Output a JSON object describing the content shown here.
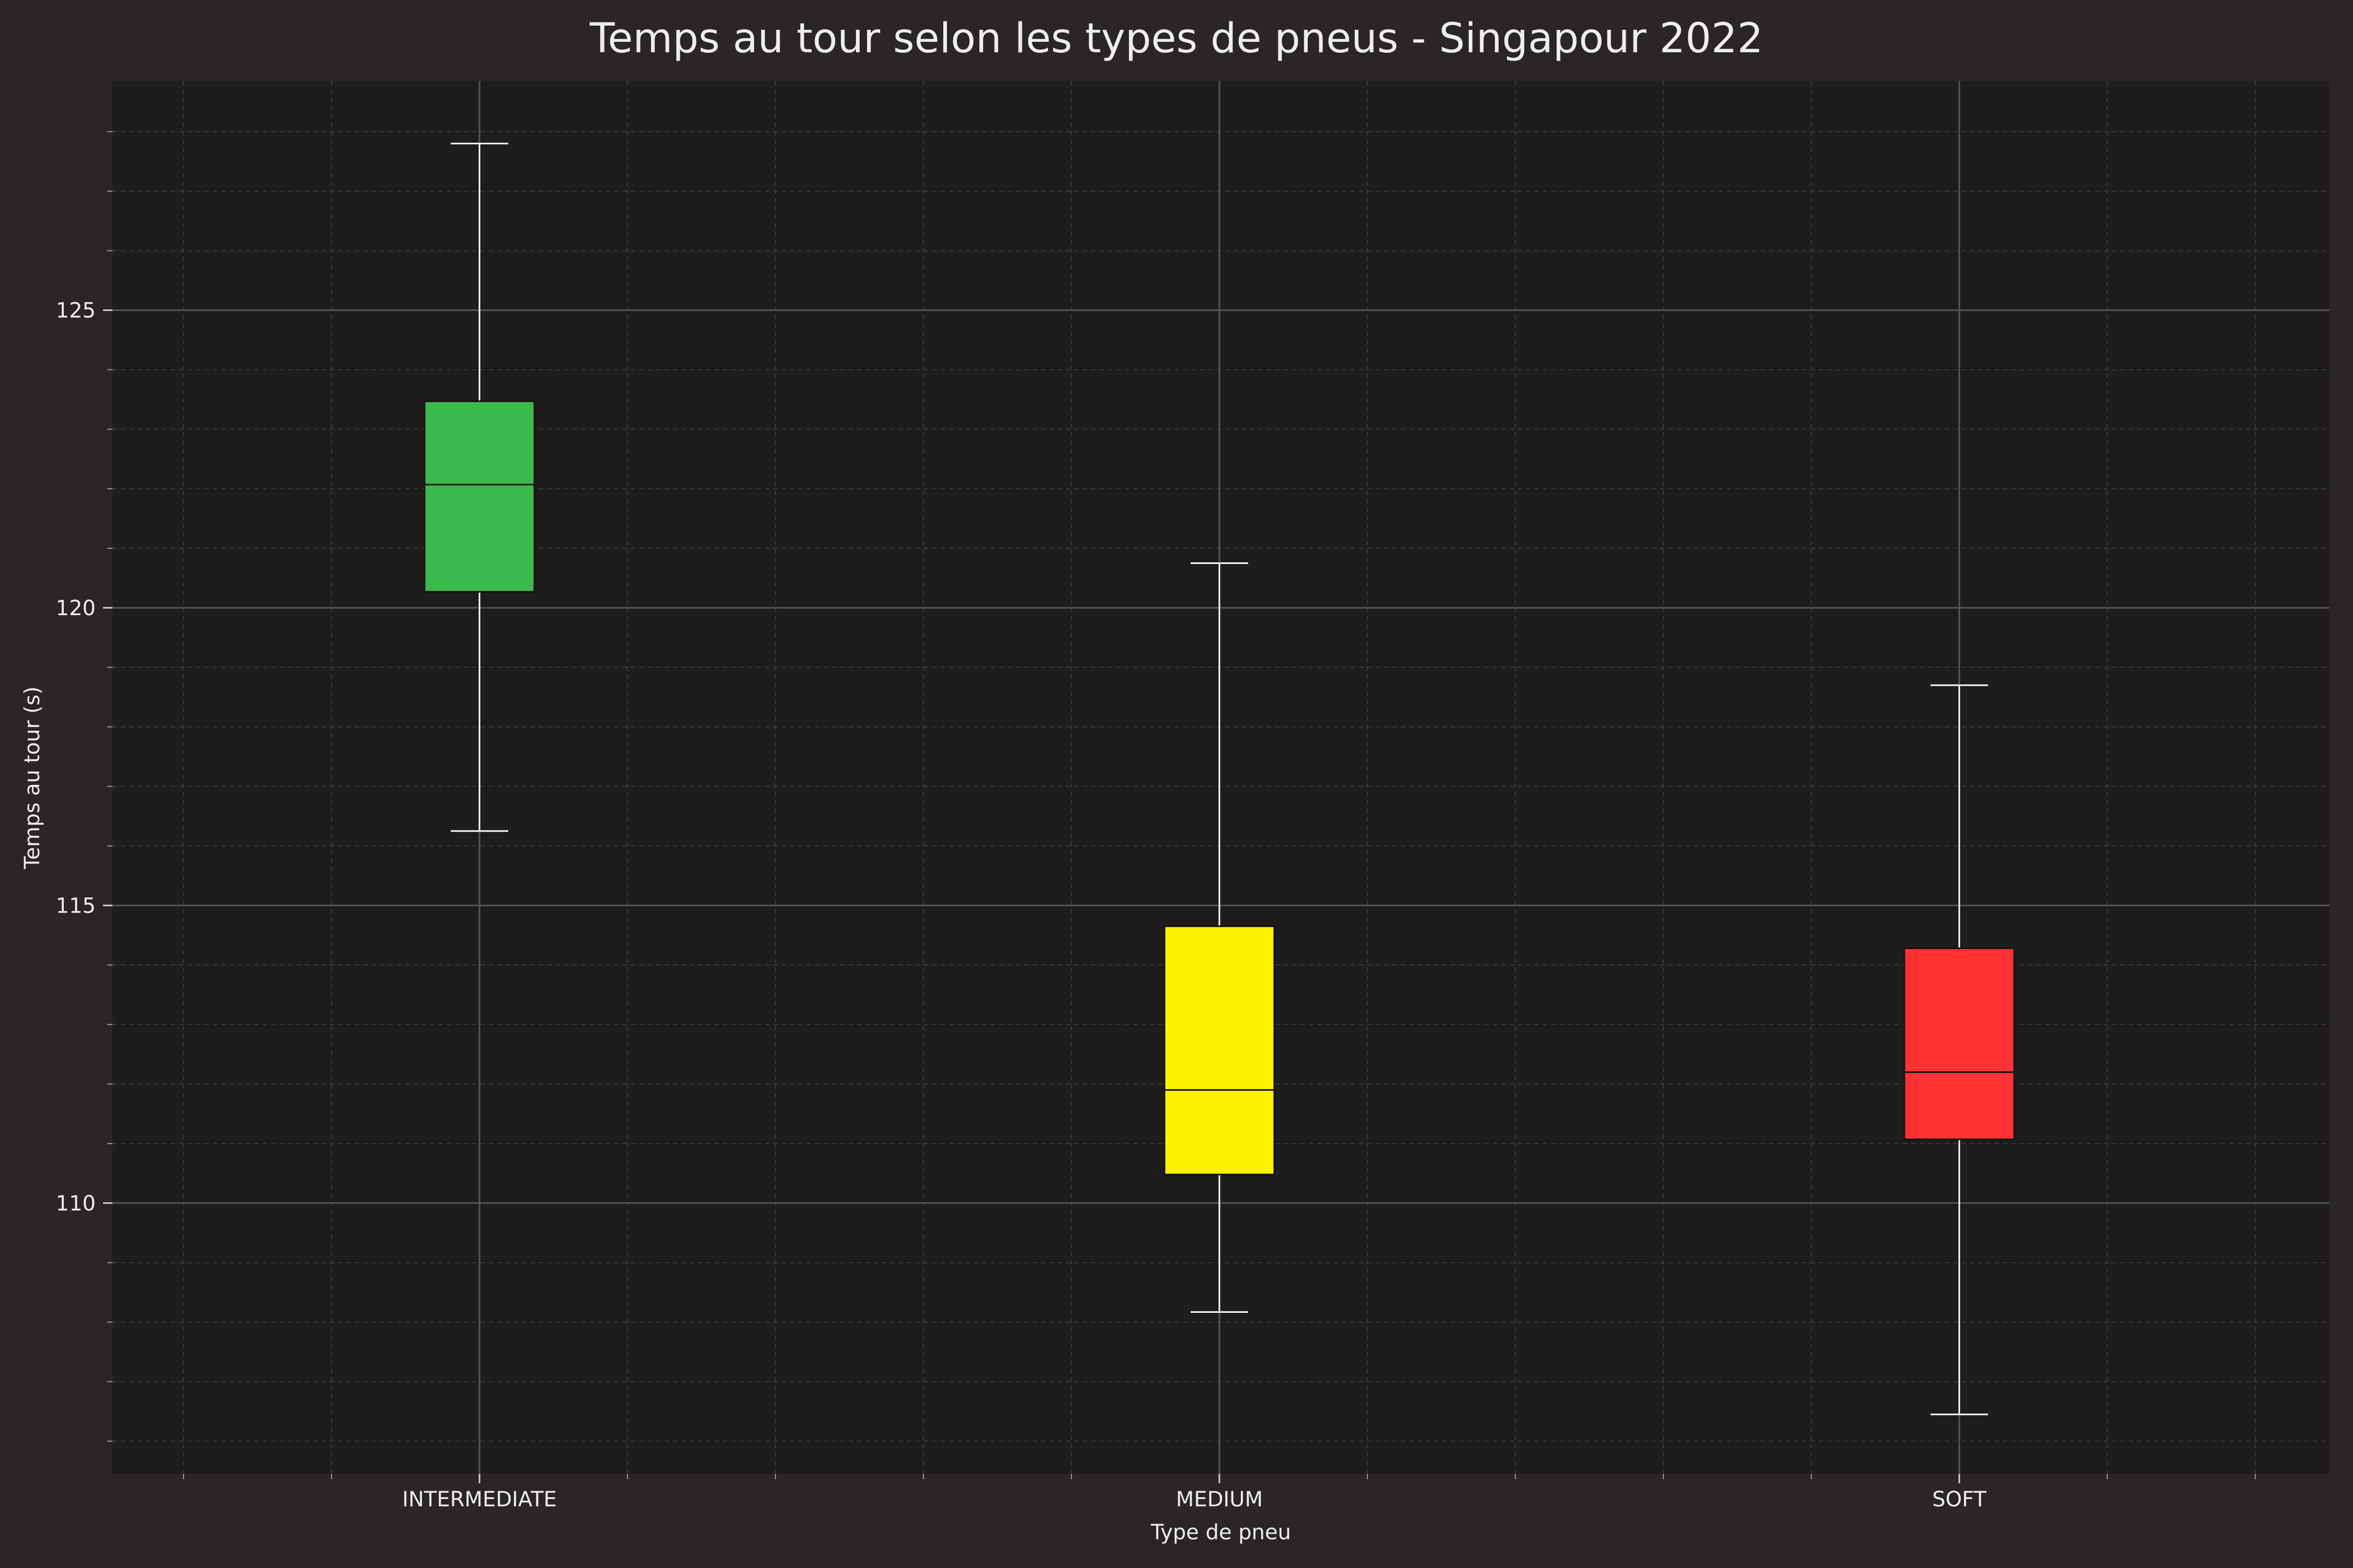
{
  "chart_data": {
    "type": "boxplot",
    "title": "Temps au tour selon les types de pneus - Singapour 2022",
    "xlabel": "Type de pneu",
    "ylabel": "Temps au tour (s)",
    "categories": [
      "INTERMEDIATE",
      "MEDIUM",
      "SOFT"
    ],
    "boxes": [
      {
        "category": "INTERMEDIATE",
        "whisker_low": 116.25,
        "q1": 120.27,
        "median": 122.07,
        "q3": 123.47,
        "whisker_high": 127.8,
        "color": "#3cb94c"
      },
      {
        "category": "MEDIUM",
        "whisker_low": 108.17,
        "q1": 110.48,
        "median": 111.9,
        "q3": 114.65,
        "whisker_high": 120.75,
        "color": "#fff200"
      },
      {
        "category": "SOFT",
        "whisker_low": 106.45,
        "q1": 111.07,
        "median": 112.2,
        "q3": 114.28,
        "whisker_high": 118.7,
        "color": "#ff3333"
      }
    ],
    "ylim": [
      105.45,
      128.85
    ],
    "yticks": [
      110,
      115,
      120,
      125
    ],
    "grid": true,
    "background": "#1e1d1c",
    "figure_background": "#292625"
  }
}
